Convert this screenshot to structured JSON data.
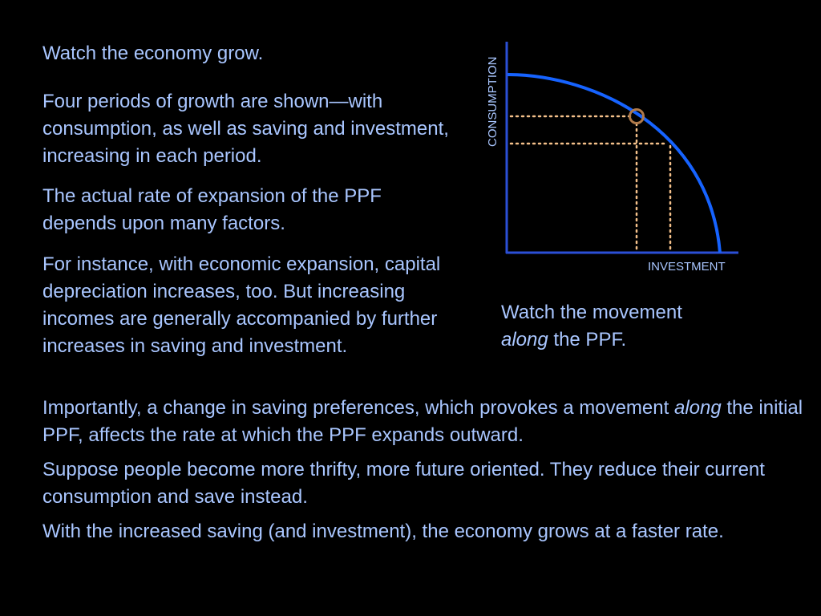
{
  "text": {
    "p1": "Watch the economy grow.",
    "p2": "Four periods of growth are shown—with consumption, as well as saving and investment, increasing in each period.",
    "p3": "The actual rate of expansion of the PPF depends upon many factors.",
    "p4": "For instance, with economic expansion, capital depreciation increases, too. But increasing incomes are generally accompanied by further increases in saving and investment.",
    "p5_prefix": "Importantly, a change in saving preferences, which provokes a movement ",
    "p5_em": "along",
    "p5_suffix": " the initial PPF, affects the rate at which the PPF expands outward.",
    "p6": "Suppose people become more thrifty, more future oriented. They reduce their current consumption and save instead.",
    "p7": "With the increased saving (and investment), the economy grows at a faster rate."
  },
  "diagram": {
    "y_axis_label": "CONSUMPTION",
    "x_axis_label": "INVESTMENT",
    "caption_prefix": "Watch the movement ",
    "caption_em": "along",
    "caption_suffix": " the PPF.",
    "colors": {
      "axis": "#2b4fd6",
      "curve": "#1663ff",
      "guide": "#f4c08a",
      "point": "#b07a4a",
      "text": "#a9c6ff"
    }
  }
}
